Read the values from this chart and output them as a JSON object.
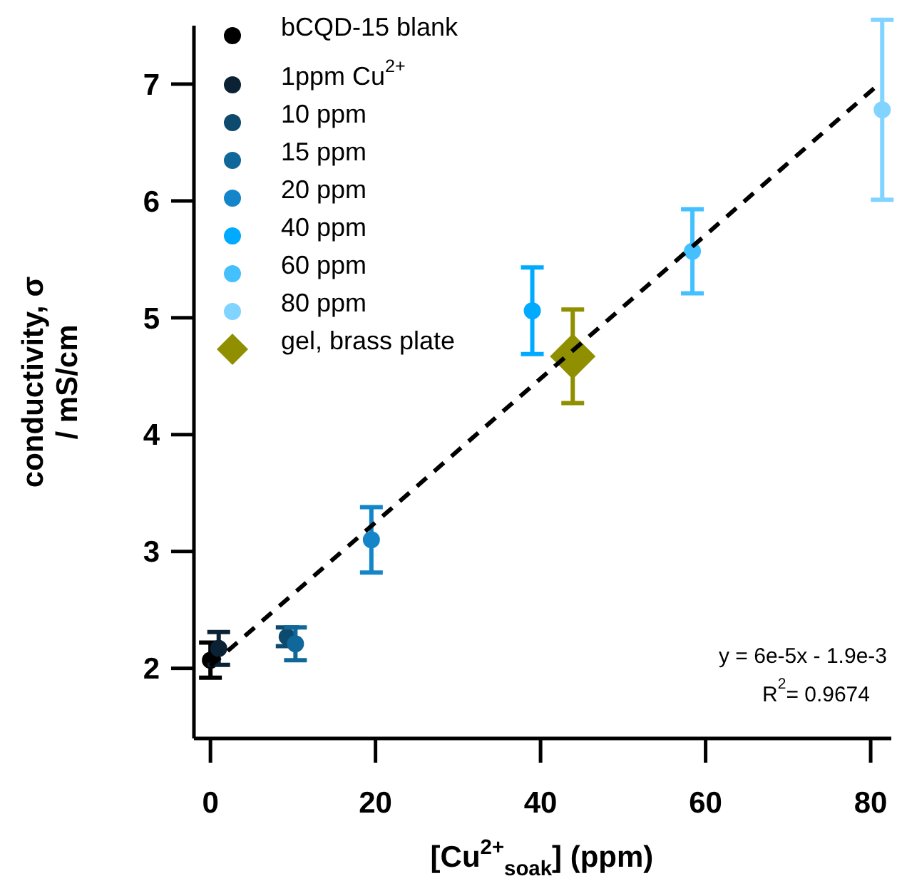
{
  "chart_data": {
    "type": "scatter",
    "xlabel": "[Cu$^{2+}$$_{soak}$] (ppm)",
    "ylabel": "conductivity, σ\n/ mS/cm",
    "xlim": [
      -2,
      82.5
    ],
    "ylim": [
      1.4,
      7.5
    ],
    "xticks": [
      0,
      20,
      40,
      60,
      80
    ],
    "yticks": [
      2,
      3,
      4,
      5,
      6,
      7
    ],
    "grid": false,
    "legend": "top left",
    "marker": "circle",
    "series": [
      {
        "name": "bCQD-15 blank",
        "color": "#000000",
        "x": [
          0
        ],
        "values": [
          2.07
        ],
        "errors": [
          0.15
        ]
      },
      {
        "name": "1ppm Cu$^{2+}$",
        "color": "#0a2233",
        "x": [
          1
        ],
        "values": [
          2.17
        ],
        "errors": [
          0.14
        ]
      },
      {
        "name": "10 ppm",
        "color": "#0e4a6e",
        "x": [
          9.3
        ],
        "values": [
          2.27
        ],
        "errors": [
          0.08
        ]
      },
      {
        "name": "15 ppm",
        "color": "#10679a",
        "x": [
          10.3
        ],
        "values": [
          2.21
        ],
        "errors": [
          0.14
        ]
      },
      {
        "name": "20 ppm",
        "color": "#1385c8",
        "x": [
          19.5
        ],
        "values": [
          3.1
        ],
        "errors": [
          0.28
        ]
      },
      {
        "name": "40 ppm",
        "color": "#00aaff",
        "x": [
          39
        ],
        "values": [
          5.06
        ],
        "errors": [
          0.37
        ]
      },
      {
        "name": "60 ppm",
        "color": "#44c0ff",
        "x": [
          58.4
        ],
        "values": [
          5.57
        ],
        "errors": [
          0.36
        ]
      },
      {
        "name": "80 ppm",
        "color": "#80d4ff",
        "x": [
          81.4
        ],
        "values": [
          6.78
        ],
        "errors": [
          0.77
        ]
      },
      {
        "name": "gel, brass plate",
        "color": "#8f8f00",
        "marker": "diamond",
        "x": [
          43.9
        ],
        "values": [
          4.67
        ],
        "errors": [
          0.4
        ]
      },
      {
        "type": "line",
        "color": "#000000",
        "line_style": "dashed",
        "marker": "none",
        "x": [
          0,
          81
        ],
        "values": [
          2.02,
          7.0
        ]
      }
    ],
    "annotations": [
      "y = 6e-5x - 1.9e-3",
      "R$^{2}$= 0.9674"
    ]
  }
}
